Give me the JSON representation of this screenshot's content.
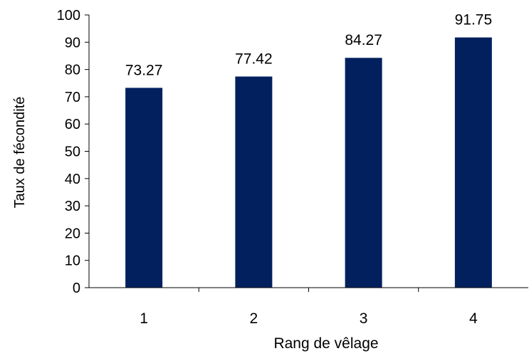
{
  "chart_data": {
    "type": "bar",
    "title": "",
    "xlabel": "Rang de vêlage",
    "ylabel": "Taux de fécondité",
    "categories": [
      "1",
      "2",
      "3",
      "4"
    ],
    "values": [
      73.27,
      77.42,
      84.27,
      91.75
    ],
    "data_labels": [
      "73.27",
      "77.42",
      "84.27",
      "91.75"
    ],
    "ylim": [
      0,
      100
    ],
    "yticks": [
      0,
      10,
      20,
      30,
      40,
      50,
      60,
      70,
      80,
      90,
      100
    ],
    "grid": false,
    "legend": "none",
    "bar_color": "#03205E"
  }
}
